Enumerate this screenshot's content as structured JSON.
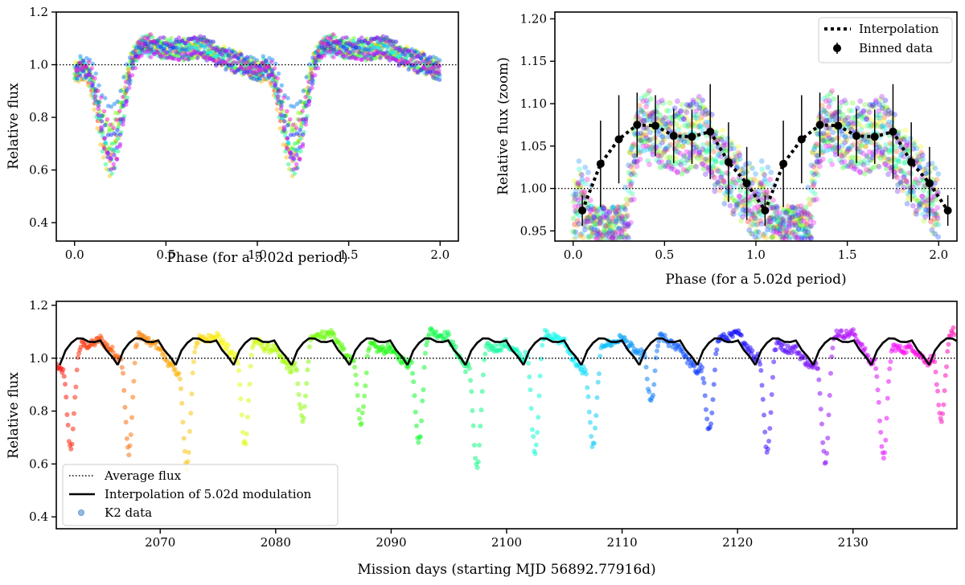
{
  "chart_data": [
    {
      "id": "panel_a",
      "type": "scatter",
      "xlabel": "Phase (for a 5.02d period)",
      "ylabel": "Relative flux",
      "xlim": [
        -0.1,
        2.1
      ],
      "ylim": [
        0.33,
        1.2
      ],
      "xticks": [
        0.0,
        0.5,
        1.0,
        1.5,
        2.0
      ],
      "xtick_labels": [
        "0.0",
        "0.5",
        "1.0",
        "1.5",
        "2.0"
      ],
      "yticks": [
        0.4,
        0.6,
        0.8,
        1.0,
        1.2
      ],
      "ytick_labels": [
        "0.4",
        "0.6",
        "0.8",
        "1.0",
        "1.2"
      ],
      "reference_line": {
        "y": 1.0,
        "style": "dotted"
      },
      "series_note": "K2 light curve folded on 5.02 d period; points colored by mission time (rainbow)"
    },
    {
      "id": "panel_b",
      "type": "scatter",
      "xlabel": "Phase (for a 5.02d period)",
      "ylabel": "Relative flux (zoom)",
      "xlim": [
        -0.1,
        2.1
      ],
      "ylim": [
        0.938,
        1.208
      ],
      "xticks": [
        0.0,
        0.5,
        1.0,
        1.5,
        2.0
      ],
      "xtick_labels": [
        "0.0",
        "0.5",
        "1.0",
        "1.5",
        "2.0"
      ],
      "yticks": [
        0.95,
        1.0,
        1.05,
        1.1,
        1.15,
        1.2
      ],
      "ytick_labels": [
        "0.95",
        "1.00",
        "1.05",
        "1.10",
        "1.15",
        "1.20"
      ],
      "reference_line": {
        "y": 1.0,
        "style": "dotted"
      },
      "legend": {
        "position": "top-right",
        "entries": [
          "Interpolation",
          "Binned data"
        ]
      },
      "binned_data": {
        "x": [
          0.05,
          0.15,
          0.25,
          0.35,
          0.45,
          0.55,
          0.65,
          0.75,
          0.85,
          0.95,
          1.05,
          1.15,
          1.25,
          1.35,
          1.45,
          1.55,
          1.65,
          1.75,
          1.85,
          1.95,
          2.05
        ],
        "y": [
          0.974,
          1.029,
          1.058,
          1.075,
          1.074,
          1.062,
          1.061,
          1.067,
          1.031,
          1.006,
          0.974,
          1.029,
          1.058,
          1.075,
          1.074,
          1.062,
          1.061,
          1.067,
          1.031,
          1.006,
          0.974
        ],
        "yerr": [
          0.018,
          0.051,
          0.052,
          0.038,
          0.036,
          0.032,
          0.032,
          0.056,
          0.047,
          0.043,
          0.018,
          0.051,
          0.052,
          0.038,
          0.036,
          0.032,
          0.032,
          0.056,
          0.047,
          0.043,
          0.018
        ]
      }
    },
    {
      "id": "panel_c",
      "type": "scatter",
      "xlabel": "Mission days (starting MJD 56892.77916d)",
      "ylabel": "Relative flux",
      "xlim": [
        2061,
        2139
      ],
      "ylim": [
        0.355,
        1.215
      ],
      "xticks": [
        2070,
        2080,
        2090,
        2100,
        2110,
        2120,
        2130
      ],
      "xtick_labels": [
        "2070",
        "2080",
        "2090",
        "2100",
        "2110",
        "2120",
        "2130"
      ],
      "yticks": [
        0.4,
        0.6,
        0.8,
        1.0,
        1.2
      ],
      "ytick_labels": [
        "0.4",
        "0.6",
        "0.8",
        "1.0",
        "1.2"
      ],
      "reference_line": {
        "y": 1.0,
        "style": "dotted"
      },
      "period_days": 5.02,
      "interpolation_t0": 2061.3,
      "legend": {
        "position": "bottom-left",
        "entries": [
          "Average flux",
          "Interpolation of 5.02d modulation",
          "K2 data"
        ]
      }
    }
  ]
}
